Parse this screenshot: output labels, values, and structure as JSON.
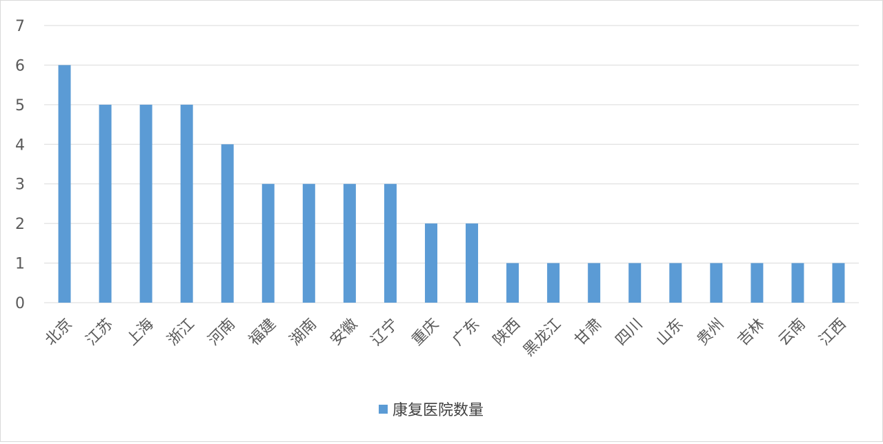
{
  "chart_data": {
    "type": "bar",
    "categories": [
      "北京",
      "江苏",
      "上海",
      "浙江",
      "河南",
      "福建",
      "湖南",
      "安徽",
      "辽宁",
      "重庆",
      "广东",
      "陕西",
      "黑龙江",
      "甘肃",
      "四川",
      "山东",
      "贵州",
      "吉林",
      "云南",
      "江西"
    ],
    "series": [
      {
        "name": "康复医院数量",
        "values": [
          6,
          5,
          5,
          5,
          4,
          3,
          3,
          3,
          3,
          2,
          2,
          1,
          1,
          1,
          1,
          1,
          1,
          1,
          1,
          1
        ],
        "color": "#5b9bd5"
      }
    ],
    "title": "",
    "xlabel": "",
    "ylabel": "",
    "ylim": [
      0,
      7
    ],
    "yticks": [
      "0",
      "1",
      "2",
      "3",
      "4",
      "5",
      "6",
      "7"
    ],
    "grid": true,
    "legend_position": "bottom",
    "gridline_color": "#d9d9d9"
  }
}
